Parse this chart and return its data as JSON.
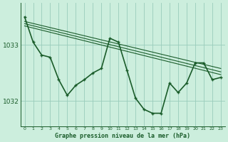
{
  "bg_color": "#cceedd",
  "plot_bg_color": "#cceedd",
  "grid_color": "#99ccbb",
  "line_color": "#1a5c2a",
  "xlabel": "Graphe pression niveau de la mer (hPa)",
  "ylim": [
    1031.55,
    1033.75
  ],
  "xlim": [
    -0.5,
    23.5
  ],
  "yticks": [
    1032,
    1033
  ],
  "xticks": [
    0,
    1,
    2,
    3,
    4,
    5,
    6,
    7,
    8,
    9,
    10,
    11,
    12,
    13,
    14,
    15,
    16,
    17,
    18,
    19,
    20,
    21,
    22,
    23
  ],
  "series": [
    {
      "x": [
        0,
        23
      ],
      "y": [
        1033.42,
        1032.58
      ],
      "linewidth": 0.8,
      "has_markers": false,
      "dashed": false
    },
    {
      "x": [
        0,
        23
      ],
      "y": [
        1033.38,
        1032.52
      ],
      "linewidth": 0.8,
      "has_markers": false,
      "dashed": false
    },
    {
      "x": [
        0,
        23
      ],
      "y": [
        1033.34,
        1032.47
      ],
      "linewidth": 0.8,
      "has_markers": false,
      "dashed": false
    },
    {
      "x": [
        0,
        1,
        2,
        3,
        4,
        5,
        6,
        7,
        8,
        9,
        10,
        11,
        12,
        13,
        14,
        15,
        16,
        17,
        18,
        19,
        20,
        21,
        22,
        23
      ],
      "y": [
        1033.5,
        1033.05,
        1032.82,
        1032.78,
        1032.38,
        1032.1,
        1032.28,
        1032.38,
        1032.5,
        1032.58,
        1033.12,
        1033.05,
        1032.55,
        1032.05,
        1031.85,
        1031.78,
        1031.78,
        1032.32,
        1032.15,
        1032.32,
        1032.68,
        1032.68,
        1032.38,
        1032.42
      ],
      "linewidth": 1.2,
      "has_markers": true,
      "dashed": false
    }
  ]
}
